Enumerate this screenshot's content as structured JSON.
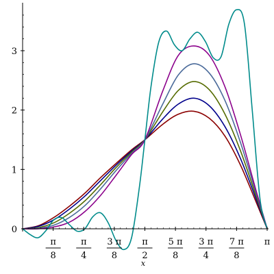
{
  "chart_data": {
    "type": "line",
    "xlabel": "x",
    "ylabel": "",
    "xlim": [
      0,
      3.14159
    ],
    "ylim": [
      0,
      3.75
    ],
    "grid": false,
    "legend": "none",
    "x_ticks": [
      {
        "value": 0.392699,
        "num": "π",
        "den": "8"
      },
      {
        "value": 0.785398,
        "num": "π",
        "den": "4"
      },
      {
        "value": 1.178097,
        "num": "3 π",
        "den": "8"
      },
      {
        "value": 1.570796,
        "num": "π",
        "den": "2"
      },
      {
        "value": 1.963495,
        "num": "5 π",
        "den": "8"
      },
      {
        "value": 2.356194,
        "num": "3 π",
        "den": "4"
      },
      {
        "value": 2.748894,
        "num": "7 π",
        "den": "8"
      },
      {
        "value": 3.141593,
        "label": "π"
      }
    ],
    "y_ticks": [
      {
        "value": 0,
        "label": "0"
      },
      {
        "value": 1,
        "label": "1"
      },
      {
        "value": 2,
        "label": "2"
      },
      {
        "value": 3,
        "label": "3"
      }
    ],
    "series": [
      {
        "color": "#8b0000",
        "x": [
          0,
          0.2,
          0.4,
          0.6,
          0.8,
          1.0,
          1.2,
          1.4,
          1.571,
          1.8,
          2.0,
          2.2,
          2.4,
          2.6,
          2.8,
          3.0,
          3.142
        ],
        "y": [
          0,
          0.05,
          0.19,
          0.38,
          0.6,
          0.86,
          1.1,
          1.33,
          1.5,
          1.76,
          1.93,
          1.98,
          1.86,
          1.56,
          1.07,
          0.45,
          0
        ]
      },
      {
        "color": "#00008b",
        "x": [
          0,
          0.2,
          0.4,
          0.6,
          0.8,
          1.0,
          1.2,
          1.4,
          1.571,
          1.8,
          2.0,
          2.2,
          2.4,
          2.6,
          2.8,
          3.0,
          3.142
        ],
        "y": [
          0,
          0.04,
          0.15,
          0.33,
          0.55,
          0.81,
          1.07,
          1.31,
          1.5,
          1.85,
          2.1,
          2.2,
          2.07,
          1.72,
          1.18,
          0.5,
          0
        ]
      },
      {
        "color": "#556b00",
        "x": [
          0,
          0.2,
          0.4,
          0.6,
          0.8,
          1.0,
          1.2,
          1.4,
          1.571,
          1.8,
          2.0,
          2.2,
          2.4,
          2.6,
          2.8,
          3.0,
          3.142
        ],
        "y": [
          0,
          0.02,
          0.1,
          0.26,
          0.47,
          0.74,
          1.03,
          1.29,
          1.5,
          1.97,
          2.33,
          2.48,
          2.34,
          1.93,
          1.31,
          0.55,
          0
        ]
      },
      {
        "color": "#4a6a9a",
        "x": [
          0,
          0.2,
          0.4,
          0.6,
          0.8,
          1.0,
          1.2,
          1.4,
          1.571,
          1.8,
          2.0,
          2.2,
          2.4,
          2.6,
          2.8,
          3.0,
          3.142
        ],
        "y": [
          0,
          0.01,
          0.06,
          0.19,
          0.39,
          0.67,
          0.98,
          1.27,
          1.5,
          2.1,
          2.59,
          2.78,
          2.62,
          2.16,
          1.45,
          0.6,
          0
        ]
      },
      {
        "color": "#8b008b",
        "x": [
          0,
          0.2,
          0.4,
          0.6,
          0.8,
          1.0,
          1.2,
          1.4,
          1.571,
          1.8,
          2.0,
          2.2,
          2.4,
          2.6,
          2.8,
          3.0,
          3.142
        ],
        "y": [
          0,
          0.0,
          0.03,
          0.11,
          0.29,
          0.56,
          0.9,
          1.25,
          1.5,
          2.32,
          2.92,
          3.08,
          2.92,
          2.39,
          1.58,
          0.64,
          0
        ]
      },
      {
        "color": "#008b8b",
        "x": [
          0,
          0.1,
          0.2,
          0.3,
          0.4,
          0.5,
          0.6,
          0.7,
          0.8,
          0.9,
          1.0,
          1.1,
          1.2,
          1.3,
          1.4,
          1.5,
          1.571,
          1.65,
          1.75,
          1.85,
          1.95,
          2.05,
          2.15,
          2.25,
          2.35,
          2.45,
          2.55,
          2.65,
          2.75,
          2.85,
          2.95,
          3.05,
          3.142
        ],
        "y": [
          0,
          -0.1,
          -0.15,
          -0.03,
          0.15,
          0.19,
          0.07,
          -0.04,
          0.0,
          0.2,
          0.27,
          0.1,
          -0.2,
          -0.35,
          -0.15,
          0.7,
          1.5,
          2.4,
          3.15,
          3.33,
          3.1,
          3.0,
          3.2,
          3.31,
          3.15,
          2.88,
          2.9,
          3.45,
          3.69,
          3.45,
          2.0,
          0.5,
          0
        ]
      }
    ]
  }
}
